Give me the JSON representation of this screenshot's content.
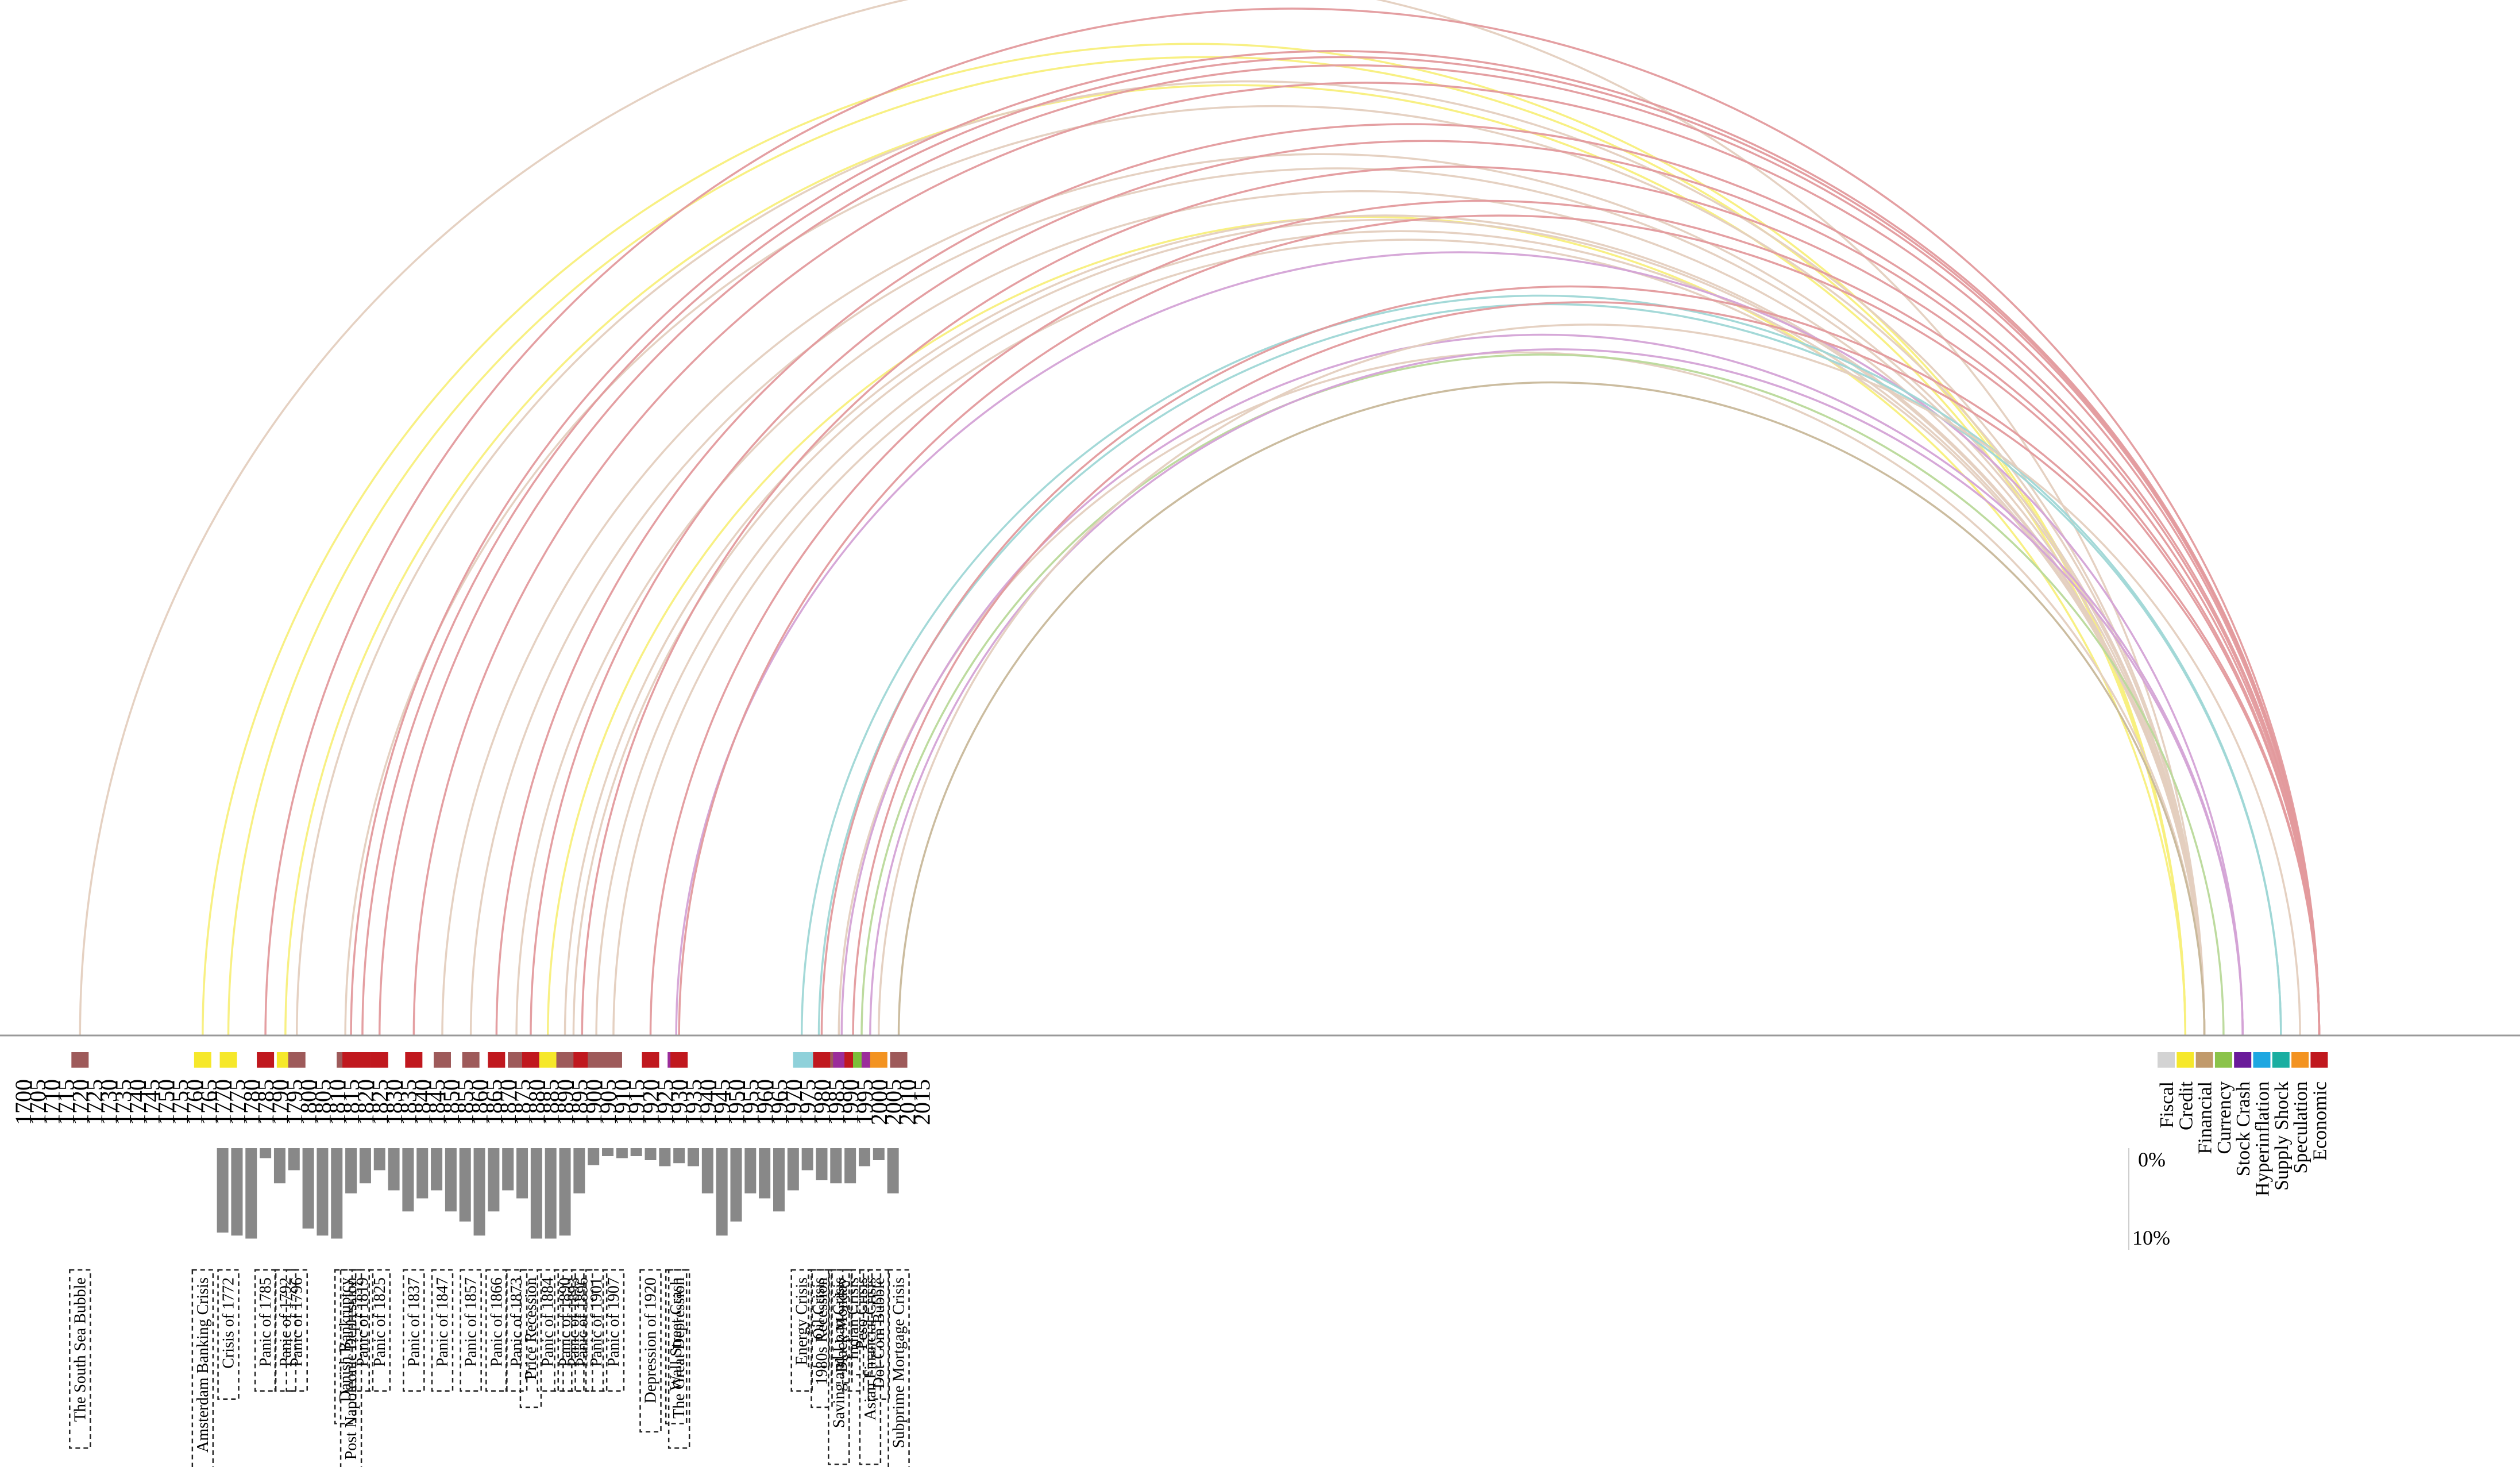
{
  "types": [
    {
      "name": "Fiscal",
      "color": "#d3d3d3"
    },
    {
      "name": "Credit",
      "color": "#f6e82a"
    },
    {
      "name": "Financial",
      "color": "#c19a6b"
    },
    {
      "name": "Currency",
      "color": "#8bc34a"
    },
    {
      "name": "Stock Crash",
      "color": "#6a1b9a"
    },
    {
      "name": "Hyperinflation",
      "color": "#1ea7e1"
    },
    {
      "name": "Supply Shock",
      "color": "#1aaea1"
    },
    {
      "name": "Speculation",
      "color": "#f39321"
    },
    {
      "name": "Economic",
      "color": "#c0181e"
    }
  ],
  "years": [
    "1700",
    "1705",
    "1710",
    "1715",
    "1720",
    "1725",
    "1730",
    "1735",
    "1740",
    "1745",
    "1750",
    "1755",
    "1760",
    "1765",
    "1770",
    "1775",
    "1780",
    "1785",
    "1790",
    "1795",
    "1800",
    "1805",
    "1810",
    "1815",
    "1820",
    "1825",
    "1830",
    "1835",
    "1840",
    "1845",
    "1850",
    "1855",
    "1860",
    "1865",
    "1870",
    "1875",
    "1880",
    "1885",
    "1890",
    "1895",
    "1900",
    "1905",
    "1910",
    "1915",
    "1920",
    "1925",
    "1930",
    "1935",
    "1940",
    "1945",
    "1950",
    "1955",
    "1960",
    "1965",
    "1970",
    "1975",
    "1980",
    "1985",
    "1990",
    "1995",
    "2000",
    "2005",
    "2010",
    "2015"
  ],
  "crises": [
    {
      "name": "The South Sea Bubble",
      "year": 1720,
      "color": "#9e5a5a",
      "type": "Financial"
    },
    {
      "name": "Amsterdam Banking Crisis",
      "year": 1763,
      "color": "#f6e82a",
      "type": "Credit"
    },
    {
      "name": "Crisis of 1772",
      "year": 1772,
      "color": "#f6e82a",
      "type": "Credit"
    },
    {
      "name": "Panic of 1785",
      "year": 1785,
      "color": "#c0181e",
      "type": "Economic"
    },
    {
      "name": "Panic of 1792",
      "year": 1792,
      "color": "#f6e82a",
      "type": "Credit"
    },
    {
      "name": "Panic of 1796",
      "year": 1796,
      "color": "#9e5a5a",
      "type": "Financial"
    },
    {
      "name": "Danish Bankruptcy",
      "year": 1813,
      "color": "#9e5a5a",
      "type": "Financial"
    },
    {
      "name": "Post Napoleonic Depression",
      "year": 1815,
      "color": "#c0181e",
      "type": "Economic"
    },
    {
      "name": "Panic of 1819",
      "year": 1819,
      "color": "#c0181e",
      "type": "Economic"
    },
    {
      "name": "Panic of 1825",
      "year": 1825,
      "color": "#c0181e",
      "type": "Economic"
    },
    {
      "name": "Panic of 1837",
      "year": 1837,
      "color": "#c0181e",
      "type": "Economic"
    },
    {
      "name": "Panic of 1847",
      "year": 1847,
      "color": "#9e5a5a",
      "type": "Financial"
    },
    {
      "name": "Panic of 1857",
      "year": 1857,
      "color": "#9e5a5a",
      "type": "Financial"
    },
    {
      "name": "Panic of 1866",
      "year": 1866,
      "color": "#c0181e",
      "type": "Economic"
    },
    {
      "name": "Panic of 1873",
      "year": 1873,
      "color": "#9e5a5a",
      "type": "Financial"
    },
    {
      "name": "Price Recession",
      "year": 1878,
      "color": "#c0181e",
      "type": "Economic"
    },
    {
      "name": "Panic of 1884",
      "year": 1884,
      "color": "#f6e82a",
      "type": "Credit"
    },
    {
      "name": "Panic of 1890",
      "year": 1890,
      "color": "#9e5a5a",
      "type": "Financial"
    },
    {
      "name": "Panic of 1893",
      "year": 1893,
      "color": "#9e5a5a",
      "type": "Financial"
    },
    {
      "name": "Panic of 1896",
      "year": 1896,
      "color": "#c0181e",
      "type": "Economic"
    },
    {
      "name": "Panic of 1901",
      "year": 1901,
      "color": "#9e5a5a",
      "type": "Financial"
    },
    {
      "name": "Panic of 1907",
      "year": 1907,
      "color": "#9e5a5a",
      "type": "Financial"
    },
    {
      "name": "Depression of 1920",
      "year": 1920,
      "color": "#c0181e",
      "type": "Economic"
    },
    {
      "name": "Wall Street Crash",
      "year": 1929,
      "color": "#9b2d9b",
      "type": "Stock Crash"
    },
    {
      "name": "The Great Depression",
      "year": 1930,
      "color": "#c0181e",
      "type": "Economic"
    },
    {
      "name": "Energy Crisis",
      "year": 1973,
      "color": "#8fd1da",
      "type": "Supply Shock"
    },
    {
      "name": "Oil Crisis",
      "year": 1979,
      "color": "#8fd1da",
      "type": "Supply Shock"
    },
    {
      "name": "1980s Recession",
      "year": 1980,
      "color": "#c0181e",
      "type": "Economic"
    },
    {
      "name": "Saving and Loan Crisis",
      "year": 1986,
      "color": "#9e5a5a",
      "type": "Financial"
    },
    {
      "name": "Black Monday",
      "year": 1987,
      "color": "#9b2d9b",
      "type": "Stock Crash"
    },
    {
      "name": "Indian Crisis",
      "year": 1991,
      "color": "#c0181e",
      "type": "Economic"
    },
    {
      "name": "Peso Crisis",
      "year": 1994,
      "color": "#7cbf3a",
      "type": "Currency"
    },
    {
      "name": "Asian Financial Crisis",
      "year": 1997,
      "color": "#9b2d9b",
      "type": "Stock Crash"
    },
    {
      "name": "Dot-Com Bubble",
      "year": 2000,
      "color": "#f39321",
      "type": "Speculation"
    },
    {
      "name": "Subprime Mortgage Crisis",
      "year": 2007,
      "color": "#9e5a5a",
      "type": "Financial"
    }
  ],
  "bars": {
    "axis_top_label": "0%",
    "axis_bottom_label": "10%",
    "values": [
      {
        "year": 1770,
        "value": 8.4
      },
      {
        "year": 1775,
        "value": 8.7
      },
      {
        "year": 1780,
        "value": 9.0
      },
      {
        "year": 1785,
        "value": 1.0
      },
      {
        "year": 1790,
        "value": 3.5
      },
      {
        "year": 1795,
        "value": 2.2
      },
      {
        "year": 1800,
        "value": 8.0
      },
      {
        "year": 1805,
        "value": 8.7
      },
      {
        "year": 1810,
        "value": 9.0
      },
      {
        "year": 1815,
        "value": 4.5
      },
      {
        "year": 1820,
        "value": 3.5
      },
      {
        "year": 1825,
        "value": 2.2
      },
      {
        "year": 1830,
        "value": 4.2
      },
      {
        "year": 1835,
        "value": 6.3
      },
      {
        "year": 1840,
        "value": 5.0
      },
      {
        "year": 1845,
        "value": 4.2
      },
      {
        "year": 1850,
        "value": 6.3
      },
      {
        "year": 1855,
        "value": 7.3
      },
      {
        "year": 1860,
        "value": 8.7
      },
      {
        "year": 1865,
        "value": 6.3
      },
      {
        "year": 1870,
        "value": 4.2
      },
      {
        "year": 1875,
        "value": 5.0
      },
      {
        "year": 1880,
        "value": 9.0
      },
      {
        "year": 1885,
        "value": 9.0
      },
      {
        "year": 1890,
        "value": 8.7
      },
      {
        "year": 1895,
        "value": 4.5
      },
      {
        "year": 1900,
        "value": 1.7
      },
      {
        "year": 1905,
        "value": 0.8
      },
      {
        "year": 1910,
        "value": 1.0
      },
      {
        "year": 1915,
        "value": 0.8
      },
      {
        "year": 1920,
        "value": 1.2
      },
      {
        "year": 1925,
        "value": 1.8
      },
      {
        "year": 1930,
        "value": 1.5
      },
      {
        "year": 1935,
        "value": 1.8
      },
      {
        "year": 1940,
        "value": 4.5
      },
      {
        "year": 1945,
        "value": 8.7
      },
      {
        "year": 1950,
        "value": 7.3
      },
      {
        "year": 1955,
        "value": 4.5
      },
      {
        "year": 1960,
        "value": 5.0
      },
      {
        "year": 1965,
        "value": 6.3
      },
      {
        "year": 1970,
        "value": 4.2
      },
      {
        "year": 1975,
        "value": 2.2
      },
      {
        "year": 1980,
        "value": 3.2
      },
      {
        "year": 1985,
        "value": 3.5
      },
      {
        "year": 1990,
        "value": 3.5
      },
      {
        "year": 1995,
        "value": 1.8
      },
      {
        "year": 2000,
        "value": 1.2
      },
      {
        "year": 2005,
        "value": 4.5
      }
    ]
  },
  "arcs": [
    {
      "year": 1720,
      "type": "Financial",
      "color": "#e4cfbf"
    },
    {
      "year": 1763,
      "type": "Credit",
      "color": "#f8ef7c"
    },
    {
      "year": 1772,
      "type": "Credit",
      "color": "#f8ef7c"
    },
    {
      "year": 1785,
      "type": "Economic",
      "color": "#e39a9d"
    },
    {
      "year": 1792,
      "type": "Credit",
      "color": "#f8ef7c"
    },
    {
      "year": 1796,
      "type": "Financial",
      "color": "#e4cfbf"
    },
    {
      "year": 1813,
      "type": "Financial",
      "color": "#e4cfbf"
    },
    {
      "year": 1815,
      "type": "Economic",
      "color": "#e39a9d"
    },
    {
      "year": 1819,
      "type": "Economic",
      "color": "#e39a9d"
    },
    {
      "year": 1825,
      "type": "Economic",
      "color": "#e39a9d"
    },
    {
      "year": 1837,
      "type": "Economic",
      "color": "#e39a9d"
    },
    {
      "year": 1847,
      "type": "Financial",
      "color": "#e4cfbf"
    },
    {
      "year": 1857,
      "type": "Financial",
      "color": "#e4cfbf"
    },
    {
      "year": 1866,
      "type": "Economic",
      "color": "#e39a9d"
    },
    {
      "year": 1873,
      "type": "Financial",
      "color": "#e4cfbf"
    },
    {
      "year": 1878,
      "type": "Economic",
      "color": "#e39a9d"
    },
    {
      "year": 1884,
      "type": "Credit",
      "color": "#f8ef7c"
    },
    {
      "year": 1890,
      "type": "Financial",
      "color": "#e4cfbf"
    },
    {
      "year": 1893,
      "type": "Financial",
      "color": "#e4cfbf"
    },
    {
      "year": 1896,
      "type": "Economic",
      "color": "#e39a9d"
    },
    {
      "year": 1901,
      "type": "Financial",
      "color": "#e4cfbf"
    },
    {
      "year": 1907,
      "type": "Financial",
      "color": "#e4cfbf"
    },
    {
      "year": 1920,
      "type": "Economic",
      "color": "#e39a9d"
    },
    {
      "year": 1929,
      "type": "Stock Crash",
      "color": "#d4a3d6"
    },
    {
      "year": 1930,
      "type": "Economic",
      "color": "#e39a9d"
    },
    {
      "year": 1973,
      "type": "Supply Shock",
      "color": "#9fd7d6"
    },
    {
      "year": 1979,
      "type": "Supply Shock",
      "color": "#9fd7d6"
    },
    {
      "year": 1980,
      "type": "Economic",
      "color": "#e39a9d"
    },
    {
      "year": 1986,
      "type": "Financial",
      "color": "#e4cfbf"
    },
    {
      "year": 1987,
      "type": "Stock Crash",
      "color": "#d4a3d6"
    },
    {
      "year": 1991,
      "type": "Economic",
      "color": "#e39a9d"
    },
    {
      "year": 1994,
      "type": "Currency",
      "color": "#b9d99a"
    },
    {
      "year": 1997,
      "type": "Stock Crash",
      "color": "#d4a3d6"
    },
    {
      "year": 2000,
      "type": "Speculation",
      "color": "#e4cfbf"
    },
    {
      "year": 2007,
      "type": "Financial",
      "color": "#c8b89a"
    }
  ]
}
